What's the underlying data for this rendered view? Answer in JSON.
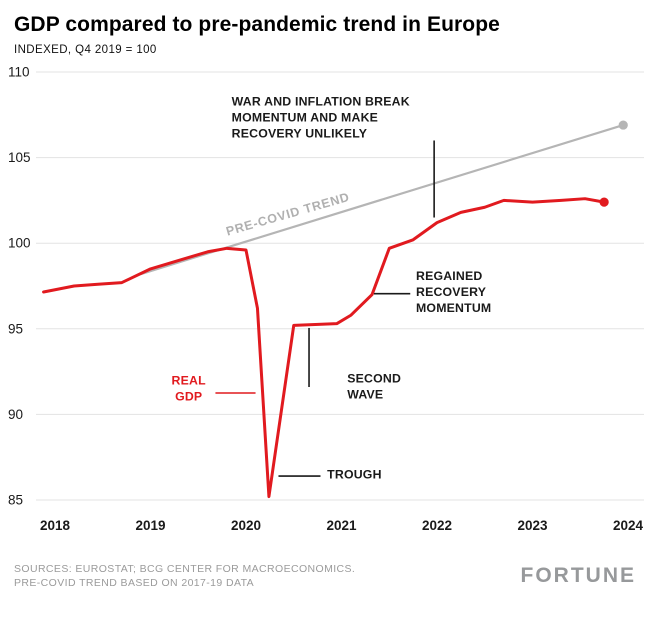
{
  "header": {
    "title": "GDP compared to pre-pandemic trend in Europe",
    "subtitle": "INDEXED, Q4 2019 = 100"
  },
  "footer": {
    "source_line1": "SOURCES: EUROSTAT; BCG CENTER FOR MACROECONOMICS.",
    "source_line2": "PRE-COVID TREND BASED ON 2017-19 DATA",
    "logo": "FORTUNE"
  },
  "chart_data": {
    "type": "line",
    "title": "GDP compared to pre-pandemic trend in Europe",
    "subtitle": "INDEXED, Q4 2019 = 100",
    "x_domain": [
      2018,
      2024
    ],
    "y_domain": [
      85,
      110
    ],
    "y_ticks": [
      85,
      90,
      95,
      100,
      105,
      110
    ],
    "x_ticks": [
      2018,
      2019,
      2020,
      2021,
      2022,
      2023,
      2024
    ],
    "grid": true,
    "legend_position": "none",
    "colors": {
      "real_gdp": "#e11a1f",
      "trend": "#b5b5b5",
      "grid": "#e3e3e3",
      "axis_text": "#1a1a1a",
      "annotation": "#1a1a1a",
      "trend_label": "#b0b0b0"
    },
    "series": [
      {
        "name": "Pre-COVID trend",
        "color": "#b5b5b5",
        "width": 2.2,
        "end_dot": true,
        "points": [
          [
            2018.9,
            98.2
          ],
          [
            2023.95,
            106.9
          ]
        ]
      },
      {
        "name": "Real GDP",
        "color": "#e11a1f",
        "width": 3,
        "end_dot": true,
        "points": [
          [
            2017.88,
            97.15
          ],
          [
            2018.2,
            97.5
          ],
          [
            2018.45,
            97.6
          ],
          [
            2018.7,
            97.7
          ],
          [
            2019.0,
            98.5
          ],
          [
            2019.3,
            99.0
          ],
          [
            2019.6,
            99.5
          ],
          [
            2019.8,
            99.7
          ],
          [
            2020.0,
            99.6
          ],
          [
            2020.12,
            96.2
          ],
          [
            2020.24,
            85.2
          ],
          [
            2020.5,
            95.2
          ],
          [
            2020.95,
            95.3
          ],
          [
            2021.1,
            95.8
          ],
          [
            2021.32,
            97.0
          ],
          [
            2021.5,
            99.7
          ],
          [
            2021.75,
            100.2
          ],
          [
            2022.0,
            101.2
          ],
          [
            2022.25,
            101.8
          ],
          [
            2022.5,
            102.1
          ],
          [
            2022.7,
            102.5
          ],
          [
            2023.0,
            102.4
          ],
          [
            2023.3,
            102.5
          ],
          [
            2023.55,
            102.6
          ],
          [
            2023.75,
            102.4
          ]
        ]
      }
    ],
    "trend_label": {
      "text": "PRE-COVID TREND",
      "x": 2020.45,
      "y": 101.7,
      "rotate": -16,
      "color": "#b0b0b0"
    },
    "annotations": [
      {
        "id": "war",
        "text_lines": [
          "WAR AND INFLATION BREAK",
          "MOMENTUM AND MAKE",
          "RECOVERY UNLIKELY"
        ],
        "x": 2019.85,
        "y": 108.3,
        "anchor": "start",
        "color": "#1a1a1a",
        "connector": {
          "x1": 2021.97,
          "y1": 106.0,
          "x2": 2021.97,
          "y2": 101.5,
          "color": "#1a1a1a"
        }
      },
      {
        "id": "regained",
        "text_lines": [
          "REGAINED",
          "RECOVERY",
          "MOMENTUM"
        ],
        "x": 2021.78,
        "y": 98.1,
        "anchor": "start",
        "color": "#1a1a1a",
        "connector": {
          "x1": 2021.34,
          "y1": 97.05,
          "x2": 2021.72,
          "y2": 97.05,
          "color": "#1a1a1a"
        }
      },
      {
        "id": "real-gdp",
        "text_lines": [
          "REAL",
          "GDP"
        ],
        "x": 2019.4,
        "y": 92.0,
        "anchor": "middle",
        "color": "#e11a1f",
        "connector": {
          "x1": 2019.68,
          "y1": 91.25,
          "x2": 2020.1,
          "y2": 91.25,
          "color": "#e11a1f"
        }
      },
      {
        "id": "second-wave",
        "text_lines": [
          "SECOND",
          "WAVE"
        ],
        "x": 2021.06,
        "y": 92.1,
        "anchor": "start",
        "color": "#1a1a1a",
        "connector": {
          "x1": 2020.66,
          "y1": 95.05,
          "x2": 2020.66,
          "y2": 91.6,
          "color": "#1a1a1a"
        }
      },
      {
        "id": "trough",
        "text_lines": [
          "TROUGH"
        ],
        "x": 2020.85,
        "y": 86.5,
        "anchor": "start",
        "color": "#1a1a1a",
        "connector": {
          "x1": 2020.34,
          "y1": 86.4,
          "x2": 2020.78,
          "y2": 86.4,
          "color": "#1a1a1a"
        }
      }
    ]
  }
}
